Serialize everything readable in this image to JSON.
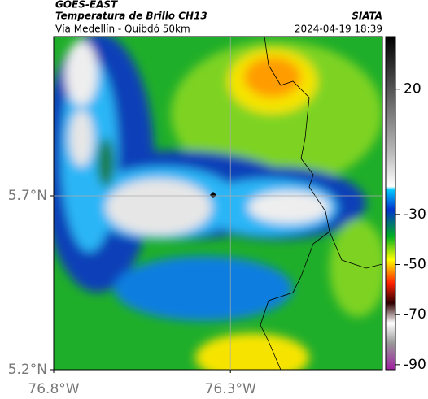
{
  "header": {
    "title": "GOES-EAST",
    "subtitle": "Temperatura de Brillo CH13",
    "source": "SIATA",
    "route": "Vía Medellín - Quibdó 50km",
    "timestamp": "2024-04-19 18:39"
  },
  "map": {
    "lonlim": [
      -76.8,
      -75.87
    ],
    "latlim": [
      5.2,
      6.158
    ],
    "lonticks": [
      {
        "value": -76.8,
        "label": "76.8°W"
      },
      {
        "value": -76.3,
        "label": "76.3°W"
      }
    ],
    "latticks": [
      {
        "value": 5.2,
        "label": "5.2°N"
      },
      {
        "value": 5.7,
        "label": "5.7°N"
      }
    ],
    "gridlines": {
      "lon": [
        -76.3
      ],
      "lat": [
        5.7
      ]
    }
  },
  "colorbar": {
    "lim": [
      -92,
      41
    ],
    "ticks": [
      20,
      -30,
      -50,
      -70,
      -90
    ]
  }
}
